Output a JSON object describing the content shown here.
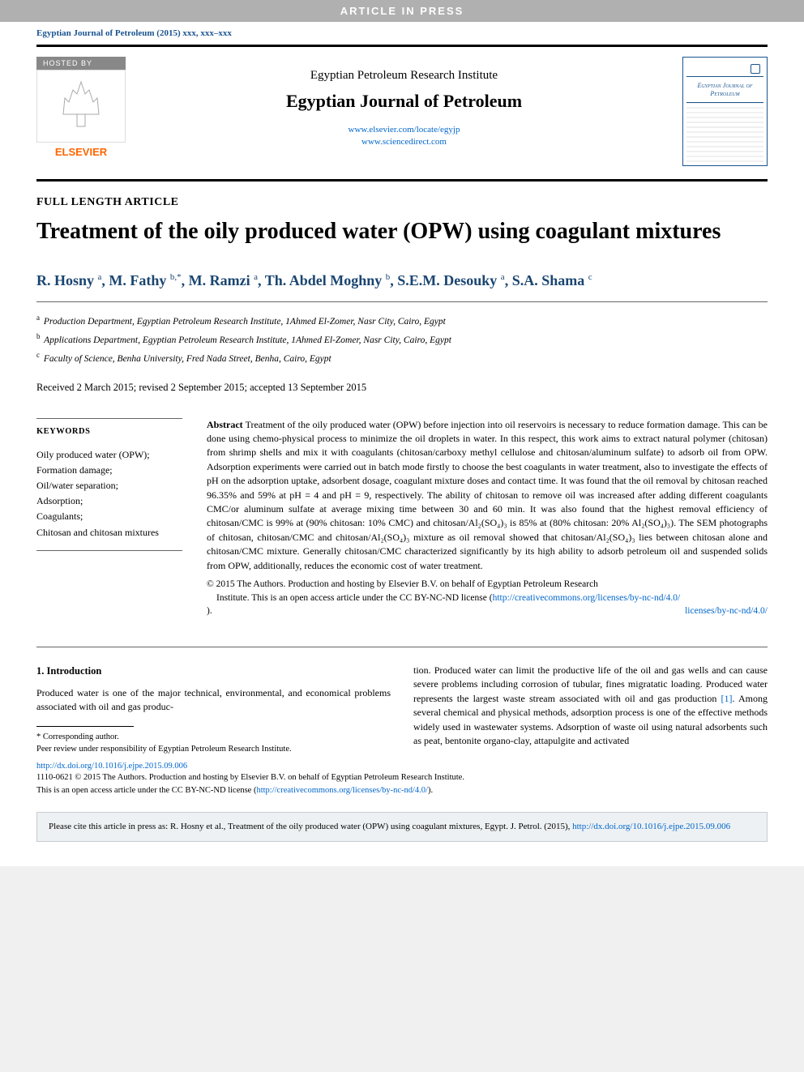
{
  "banner": "ARTICLE IN PRESS",
  "journal_ref": "Egyptian Journal of Petroleum (2015) xxx, xxx–xxx",
  "header": {
    "hosted_label": "HOSTED BY",
    "publisher": "ELSEVIER",
    "institute": "Egyptian Petroleum Research Institute",
    "journal_title": "Egyptian Journal of Petroleum",
    "link1": "www.elsevier.com/locate/egyjp",
    "link2": "www.sciencedirect.com",
    "cover_title": "Egyptian Journal of Petroleum"
  },
  "article_type": "FULL LENGTH ARTICLE",
  "title": "Treatment of the oily produced water (OPW) using coagulant mixtures",
  "authors_html": "R. Hosny <sup>a</sup>, M. Fathy <sup>b,*</sup>, M. Ramzi <sup>a</sup>, Th. Abdel Moghny <sup>b</sup>, S.E.M. Desouky <sup>a</sup>, S.A. Shama <sup>c</sup>",
  "affiliations": [
    {
      "sup": "a",
      "text": "Production Department, Egyptian Petroleum Research Institute, 1Ahmed El-Zomer, Nasr City, Cairo, Egypt"
    },
    {
      "sup": "b",
      "text": "Applications Department, Egyptian Petroleum Research Institute, 1Ahmed El-Zomer, Nasr City, Cairo, Egypt"
    },
    {
      "sup": "c",
      "text": "Faculty of Science, Benha University, Fred Nada Street, Benha, Cairo, Egypt"
    }
  ],
  "dates": "Received 2 March 2015; revised 2 September 2015; accepted 13 September 2015",
  "keywords": {
    "heading": "KEYWORDS",
    "items": "Oily produced water (OPW);\nFormation damage;\nOil/water separation;\nAdsorption;\nCoagulants;\nChitosan and chitosan mixtures"
  },
  "abstract": {
    "label": "Abstract",
    "text": "Treatment of the oily produced water (OPW) before injection into oil reservoirs is necessary to reduce formation damage. This can be done using chemo-physical process to minimize the oil droplets in water. In this respect, this work aims to extract natural polymer (chitosan) from shrimp shells and mix it with coagulants (chitosan/carboxy methyl cellulose and chitosan/aluminum sulfate) to adsorb oil from OPW. Adsorption experiments were carried out in batch mode firstly to choose the best coagulants in water treatment, also to investigate the effects of pH on the adsorption uptake, adsorbent dosage, coagulant mixture doses and contact time. It was found that the oil removal by chitosan reached 96.35% and 59% at pH = 4 and pH = 9, respectively. The ability of chitosan to remove oil was increased after adding different coagulants CMC/or aluminum sulfate at average mixing time between 30 and 60 min. It was also found that the highest removal efficiency of chitosan/CMC is 99% at (90% chitosan: 10% CMC) and chitosan/Al₂(SO₄)₃ is 85% at (80% chitosan: 20% Al₂(SO₄)₃). The SEM photographs of chitosan, chitosan/CMC and chitosan/Al₂(SO₄)₃ mixture as oil removal showed that chitosan/Al₂(SO₄)₃ lies between chitosan alone and chitosan/CMC mixture. Generally chitosan/CMC characterized significantly by its high ability to adsorb petroleum oil and suspended solids from OPW, additionally, reduces the economic cost of water treatment."
  },
  "copyright": {
    "line1": "© 2015 The Authors. Production and hosting by Elsevier B.V. on behalf of Egyptian Petroleum Research",
    "line2": "Institute.   This is an open access article under the CC BY-NC-ND license (",
    "cc_link": "http://creativecommons.org/licenses/by-nc-nd/4.0/",
    "line3": ")."
  },
  "intro": {
    "heading": "1. Introduction",
    "p1": "Produced water is one of the major technical, environmental, and economical problems associated with oil and gas produc-",
    "p2a": "tion. Produced water can limit the productive life of the oil and gas wells and can cause severe problems including corrosion of tubular, fines migratatic loading. Produced water represents the largest waste stream associated with oil and gas production ",
    "ref": "[1]",
    "p2b": ". Among several chemical and physical methods, adsorption process is one of the effective methods widely used in wastewater systems. Adsorption of waste oil using natural adsorbents such as peat, bentonite organo-clay, attapulgite and activated"
  },
  "footnotes": {
    "corresponding": "* Corresponding author.",
    "peer": "Peer review under responsibility of Egyptian Petroleum Research Institute."
  },
  "doi": "http://dx.doi.org/10.1016/j.ejpe.2015.09.006",
  "issn": "1110-0621 © 2015 The Authors. Production and hosting by Elsevier B.V. on behalf of Egyptian Petroleum Research Institute.",
  "issn2a": "This is an open access article under the CC BY-NC-ND license (",
  "issn2_link": "http://creativecommons.org/licenses/by-nc-nd/4.0/",
  "issn2b": ").",
  "cite": {
    "text": "Please cite this article in press as: R. Hosny et al., Treatment of the oily produced water (OPW) using coagulant mixtures,  Egypt. J. Petrol. (2015), ",
    "link": "http://dx.doi.org/10.1016/j.ejpe.2015.09.006"
  },
  "colors": {
    "author_blue": "#1a4570",
    "link_blue": "#0066cc",
    "elsevier_orange": "#ff6600",
    "banner_gray": "#b0b0b0"
  }
}
